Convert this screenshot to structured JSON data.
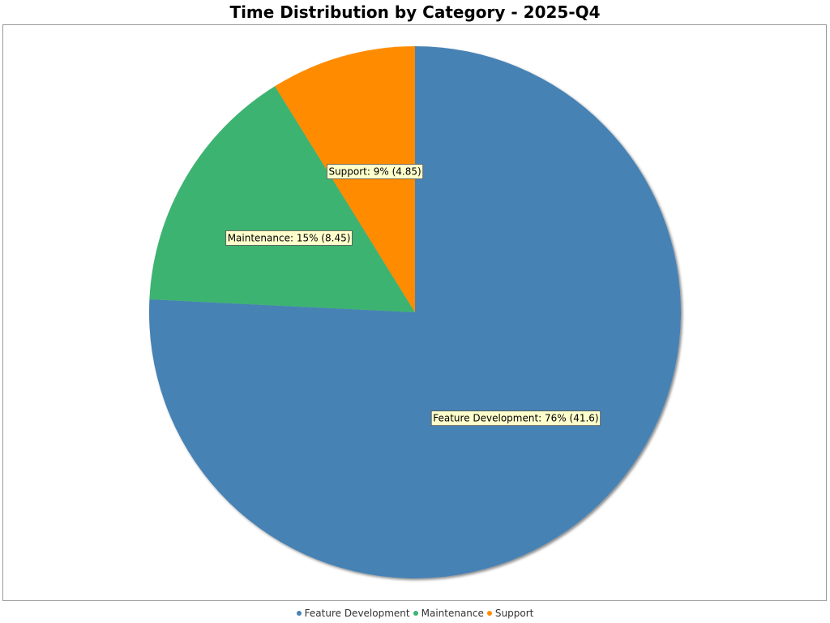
{
  "chart_data": {
    "type": "pie",
    "title": "Time Distribution by Category - 2025-Q4",
    "categories": [
      "Feature Development",
      "Maintenance",
      "Support"
    ],
    "values": [
      41.6,
      8.45,
      4.85
    ],
    "percent_labels": [
      "76%",
      "15%",
      "9%"
    ],
    "data_labels": [
      "Feature Development: 76% (41.6)",
      "Maintenance: 15% (8.45)",
      "Support: 9% (4.85)"
    ],
    "colors": [
      "#4682b4",
      "#3cb371",
      "#ff8c00"
    ],
    "legend_position": "bottom-center",
    "start_angle": "12 o'clock",
    "direction": "clockwise"
  }
}
